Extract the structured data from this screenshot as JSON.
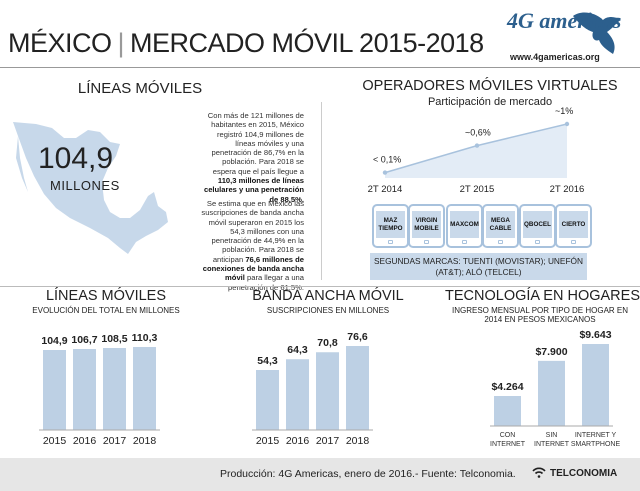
{
  "header": {
    "country": "MÉXICO",
    "separator": "|",
    "title": "MERCADO MÓVIL 2015-2018",
    "logo_text": "4G americas",
    "logo_icon": "globe-americas-icon",
    "url": "www.4gamericas.org"
  },
  "lineas_moviles": {
    "title": "LÍNEAS MÓVILES",
    "map_icon": "mexico-map-icon",
    "big_number": "104,9",
    "big_unit": "MILLONES",
    "para1": [
      {
        "t": "Con más de 121 millones de habitantes en 2015, México registró 104,9 millones de líneas móviles y una penetración de 86,7% en la población. Para 2018 se espera que el país llegue a ",
        "b": false
      },
      {
        "t": "110,3 millones de líneas celulares y una penetración de 88,5%.",
        "b": true
      }
    ],
    "para2": [
      {
        "t": "Se estima que en México las suscripciones de banda ancha móvil superaron en 2015 los 54,3 millones con una penetración de 44,9% en la población. Para 2018 se anticipan ",
        "b": false
      },
      {
        "t": "76,6 millones de conexiones de banda ancha móvil",
        "b": true
      },
      {
        "t": " para llegar a una penetración de 61,5%.",
        "b": false
      }
    ]
  },
  "omv": {
    "title": "OPERADORES MÓVILES VIRTUALES",
    "subtitle": "Participación de mercado",
    "operators": [
      "MAZ TIEMPO",
      "VIRGIN MOBILE",
      "MAXCOM",
      "MEGA CABLE",
      "QBOCEL",
      "CIERTO"
    ],
    "operator_icon": "phone-icon",
    "otros": "SEGUNDAS MARCAS: TUENTI (MOVISTAR); UNEFÓN (AT&T); ALÓ (TELCEL)"
  },
  "chart_data": [
    {
      "type": "line",
      "x": [
        "2T 2014",
        "2T 2015",
        "2T 2016"
      ],
      "values": [
        0.1,
        0.6,
        1.0
      ],
      "labels": [
        "< 0,1%",
        "~0,6%",
        "~1%"
      ],
      "color": "#a8c2dd"
    },
    {
      "type": "bar",
      "title": "LÍNEAS MÓVILES",
      "subtitle": "EVOLUCIÓN DEL TOTAL EN MILLONES",
      "categories": [
        "2015",
        "2016",
        "2017",
        "2018"
      ],
      "values": [
        104.9,
        106.7,
        108.5,
        110.3
      ],
      "labels": [
        "104,9",
        "106,7",
        "108,5",
        "110,3"
      ],
      "color": "#bdd0e4"
    },
    {
      "type": "bar",
      "title": "BANDA ANCHA MÓVIL",
      "subtitle": "SUSCRIPCIONES EN MILLONES",
      "categories": [
        "2015",
        "2016",
        "2017",
        "2018"
      ],
      "values": [
        54.3,
        64.3,
        70.8,
        76.6
      ],
      "labels": [
        "54,3",
        "64,3",
        "70,8",
        "76,6"
      ],
      "color": "#bdd0e4"
    },
    {
      "type": "bar",
      "title": "TECNOLOGÍA EN HOGARES",
      "subtitle_lines": [
        "INGRESO MENSUAL POR TIPO DE HOGAR EN",
        "2014 EN PESOS MEXICANOS"
      ],
      "categories": [
        [
          "CON",
          "INTERNET"
        ],
        [
          "SIN",
          "INTERNET"
        ],
        [
          "INTERNET Y",
          "SMARTPHONE"
        ]
      ],
      "values": [
        4264,
        7900,
        9643
      ],
      "labels": [
        "$4.264",
        "$7.900",
        "$9.643"
      ],
      "color": "#bdd0e4"
    }
  ],
  "footer": {
    "text": "Producción: 4G Americas, enero de 2016.- Fuente: Telconomia.",
    "brand": "TELCONOMIA",
    "brand_icon": "wifi-icon"
  }
}
